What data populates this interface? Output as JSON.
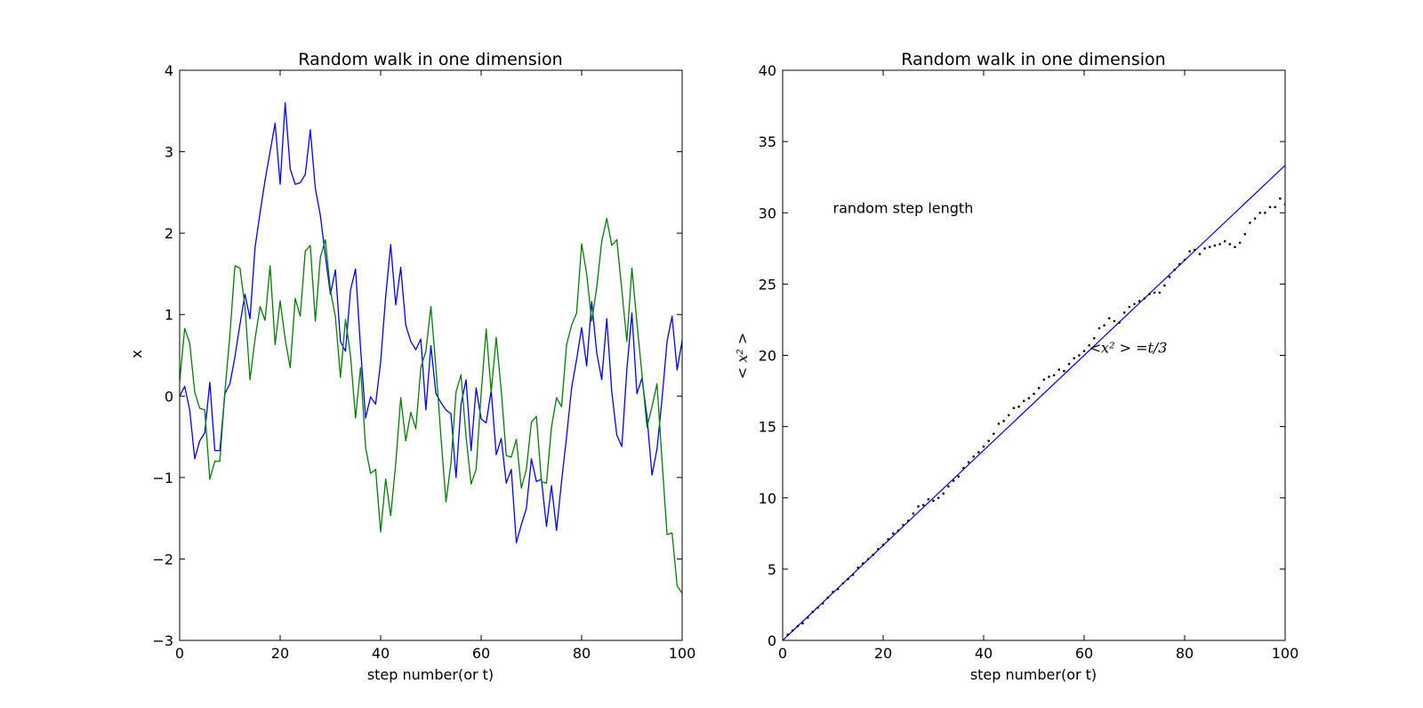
{
  "chart_data": [
    {
      "type": "line",
      "title": "Random walk in one dimension",
      "xlabel": "step number(or t)",
      "ylabel": "x",
      "xlim": [
        0,
        100
      ],
      "ylim": [
        -3,
        4
      ],
      "xticks": [
        0,
        20,
        40,
        60,
        80,
        100
      ],
      "yticks": [
        -3,
        -2,
        -1,
        0,
        1,
        2,
        3,
        4
      ],
      "xtick_labels": [
        "0",
        "20",
        "40",
        "60",
        "80",
        "100"
      ],
      "ytick_labels": [
        "−3",
        "−2",
        "−1",
        "0",
        "1",
        "2",
        "3",
        "4"
      ],
      "grid": false,
      "series": [
        {
          "color": "#0000ff",
          "x": [
            0,
            1,
            2,
            3,
            4,
            5,
            6,
            7,
            8,
            9,
            10,
            11,
            12,
            13,
            14,
            15,
            16,
            17,
            18,
            19,
            20,
            21,
            22,
            23,
            24,
            25,
            26,
            27,
            28,
            29,
            30,
            31,
            32,
            33,
            34,
            35,
            36,
            37,
            38,
            39,
            40,
            41,
            42,
            43,
            44,
            45,
            46,
            47,
            48,
            49,
            50,
            51,
            52,
            53,
            54,
            55,
            56,
            57,
            58,
            59,
            60,
            61,
            62,
            63,
            64,
            65,
            66,
            67,
            68,
            69,
            70,
            71,
            72,
            73,
            74,
            75,
            76,
            77,
            78,
            79,
            80,
            81,
            82,
            83,
            84,
            85,
            86,
            87,
            88,
            89,
            90,
            91,
            92,
            93,
            94,
            95,
            96,
            97,
            98,
            99,
            100
          ],
          "y": [
            0,
            0.12,
            -0.17,
            -0.77,
            -0.55,
            -0.45,
            0.17,
            -0.67,
            -0.67,
            0.03,
            0.15,
            0.48,
            0.88,
            1.25,
            0.95,
            1.82,
            2.25,
            2.65,
            3.0,
            3.35,
            2.6,
            3.6,
            2.79,
            2.6,
            2.62,
            2.72,
            3.27,
            2.55,
            2.22,
            1.72,
            1.25,
            1.55,
            0.67,
            0.55,
            1.3,
            1.56,
            0.59,
            -0.27,
            -0.01,
            -0.1,
            0.42,
            1.22,
            1.86,
            1.12,
            1.58,
            0.87,
            0.67,
            0.57,
            0.7,
            -0.17,
            0.62,
            0.03,
            -0.08,
            -0.17,
            -0.22,
            -1.0,
            -0.1,
            0.2,
            -0.67,
            0.1,
            -0.28,
            -0.33,
            0.07,
            -0.72,
            -0.52,
            -1.07,
            -0.9,
            -1.8,
            -1.58,
            -1.38,
            -0.77,
            -1.05,
            -1.02,
            -1.6,
            -1.1,
            -1.65,
            -1.05,
            -0.5,
            0.1,
            0.45,
            0.84,
            0.37,
            1.16,
            0.53,
            0.2,
            0.95,
            0.05,
            -0.48,
            -0.62,
            0.33,
            1.02,
            0.03,
            0.22,
            -0.25,
            -0.97,
            -0.65,
            -0.03,
            0.67,
            0.98,
            0.32,
            0.68
          ]
        },
        {
          "color": "#008000",
          "x": [
            0,
            1,
            2,
            3,
            4,
            5,
            6,
            7,
            8,
            9,
            10,
            11,
            12,
            13,
            14,
            15,
            16,
            17,
            18,
            19,
            20,
            21,
            22,
            23,
            24,
            25,
            26,
            27,
            28,
            29,
            30,
            31,
            32,
            33,
            34,
            35,
            36,
            37,
            38,
            39,
            40,
            41,
            42,
            43,
            44,
            45,
            46,
            47,
            48,
            49,
            50,
            51,
            52,
            53,
            54,
            55,
            56,
            57,
            58,
            59,
            60,
            61,
            62,
            63,
            64,
            65,
            66,
            67,
            68,
            69,
            70,
            71,
            72,
            73,
            74,
            75,
            76,
            77,
            78,
            79,
            80,
            81,
            82,
            83,
            84,
            85,
            86,
            87,
            88,
            89,
            90,
            91,
            92,
            93,
            94,
            95,
            96,
            97,
            98,
            99,
            100
          ],
          "y": [
            0.18,
            0.83,
            0.65,
            0.05,
            -0.15,
            -0.17,
            -1.02,
            -0.8,
            -0.8,
            0.05,
            0.75,
            1.6,
            1.57,
            1.1,
            0.2,
            0.7,
            1.1,
            0.93,
            1.6,
            0.63,
            1.17,
            0.7,
            0.35,
            1.2,
            0.98,
            1.78,
            1.85,
            0.92,
            1.7,
            1.92,
            1.3,
            0.97,
            0.23,
            0.94,
            0.5,
            -0.27,
            0.35,
            -0.63,
            -0.95,
            -0.9,
            -1.67,
            -1.02,
            -1.47,
            -0.83,
            -0.02,
            -0.55,
            -0.2,
            -0.4,
            0.35,
            0.55,
            1.1,
            0.35,
            -0.5,
            -1.3,
            -0.82,
            0.05,
            0.26,
            -0.5,
            -1.08,
            -0.9,
            0.03,
            0.82,
            0.05,
            0.72,
            0.07,
            -0.73,
            -0.75,
            -0.53,
            -1.13,
            -0.9,
            -0.32,
            -0.25,
            -1.05,
            -1.07,
            -0.38,
            -0.02,
            -0.13,
            0.63,
            0.87,
            1.02,
            1.87,
            1.5,
            0.92,
            1.33,
            1.9,
            2.18,
            1.85,
            1.92,
            1.3,
            0.67,
            1.57,
            0.9,
            0.27,
            -0.38,
            -0.13,
            0.15,
            -0.8,
            -1.7,
            -1.68,
            -2.33,
            -2.42
          ]
        }
      ]
    },
    {
      "type": "scatter",
      "title": "Random walk in one dimension",
      "xlabel": "step number(or t)",
      "ylabel": "< x² >",
      "xlim": [
        0,
        100
      ],
      "ylim": [
        0,
        40
      ],
      "xticks": [
        0,
        20,
        40,
        60,
        80,
        100
      ],
      "yticks": [
        0,
        5,
        10,
        15,
        20,
        25,
        30,
        35,
        40
      ],
      "xtick_labels": [
        "0",
        "20",
        "40",
        "60",
        "80",
        "100"
      ],
      "ytick_labels": [
        "0",
        "5",
        "10",
        "15",
        "20",
        "25",
        "30",
        "35",
        "40"
      ],
      "grid": false,
      "annotations": [
        {
          "text": "random step length",
          "x": 10,
          "y": 30
        },
        {
          "text": "<x² > =t/3",
          "x": 61,
          "y": 20.2
        }
      ],
      "fit_line": {
        "color": "#0000ff",
        "slope": 0.3333,
        "intercept": 0
      },
      "series": [
        {
          "color": "#000000",
          "marker": ".",
          "x": [
            0,
            1,
            2,
            3,
            4,
            5,
            6,
            7,
            8,
            9,
            10,
            11,
            12,
            13,
            14,
            15,
            16,
            17,
            18,
            19,
            20,
            21,
            22,
            23,
            24,
            25,
            26,
            27,
            28,
            29,
            30,
            31,
            32,
            33,
            34,
            35,
            36,
            37,
            38,
            39,
            40,
            41,
            42,
            43,
            44,
            45,
            46,
            47,
            48,
            49,
            50,
            51,
            52,
            53,
            54,
            55,
            56,
            57,
            58,
            59,
            60,
            61,
            62,
            63,
            64,
            65,
            66,
            67,
            68,
            69,
            70,
            71,
            72,
            73,
            74,
            75,
            76,
            77,
            78,
            79,
            80,
            81,
            82,
            83,
            84,
            85,
            86,
            87,
            88,
            89,
            90,
            91,
            92,
            93,
            94,
            95,
            96,
            97,
            98,
            99,
            100
          ],
          "y": [
            0,
            0.4,
            0.7,
            1.0,
            1.2,
            1.6,
            2.0,
            2.3,
            2.6,
            3.0,
            3.4,
            3.6,
            4.0,
            4.3,
            4.6,
            5.1,
            5.4,
            5.7,
            6.0,
            6.4,
            6.7,
            7.1,
            7.5,
            7.7,
            8.1,
            8.4,
            8.9,
            9.4,
            9.5,
            9.9,
            9.8,
            10.0,
            10.3,
            10.8,
            11.2,
            11.5,
            12.1,
            12.5,
            12.9,
            13.2,
            13.6,
            14.0,
            14.5,
            15.2,
            15.4,
            15.8,
            16.3,
            16.4,
            16.8,
            17.0,
            17.3,
            17.7,
            18.3,
            18.5,
            18.6,
            19.0,
            18.9,
            19.4,
            19.8,
            20.0,
            20.3,
            20.7,
            21.2,
            21.9,
            22.1,
            22.6,
            22.4,
            22.3,
            23.0,
            23.4,
            23.6,
            23.8,
            24.0,
            24.3,
            24.4,
            24.4,
            24.9,
            25.5,
            26.0,
            26.4,
            26.7,
            27.3,
            27.4,
            27.1,
            27.5,
            27.6,
            27.7,
            27.8,
            28.0,
            27.8,
            27.6,
            27.9,
            28.5,
            29.3,
            29.6,
            30.0,
            30.0,
            30.4,
            30.4,
            31.0,
            30.6
          ]
        }
      ]
    }
  ]
}
